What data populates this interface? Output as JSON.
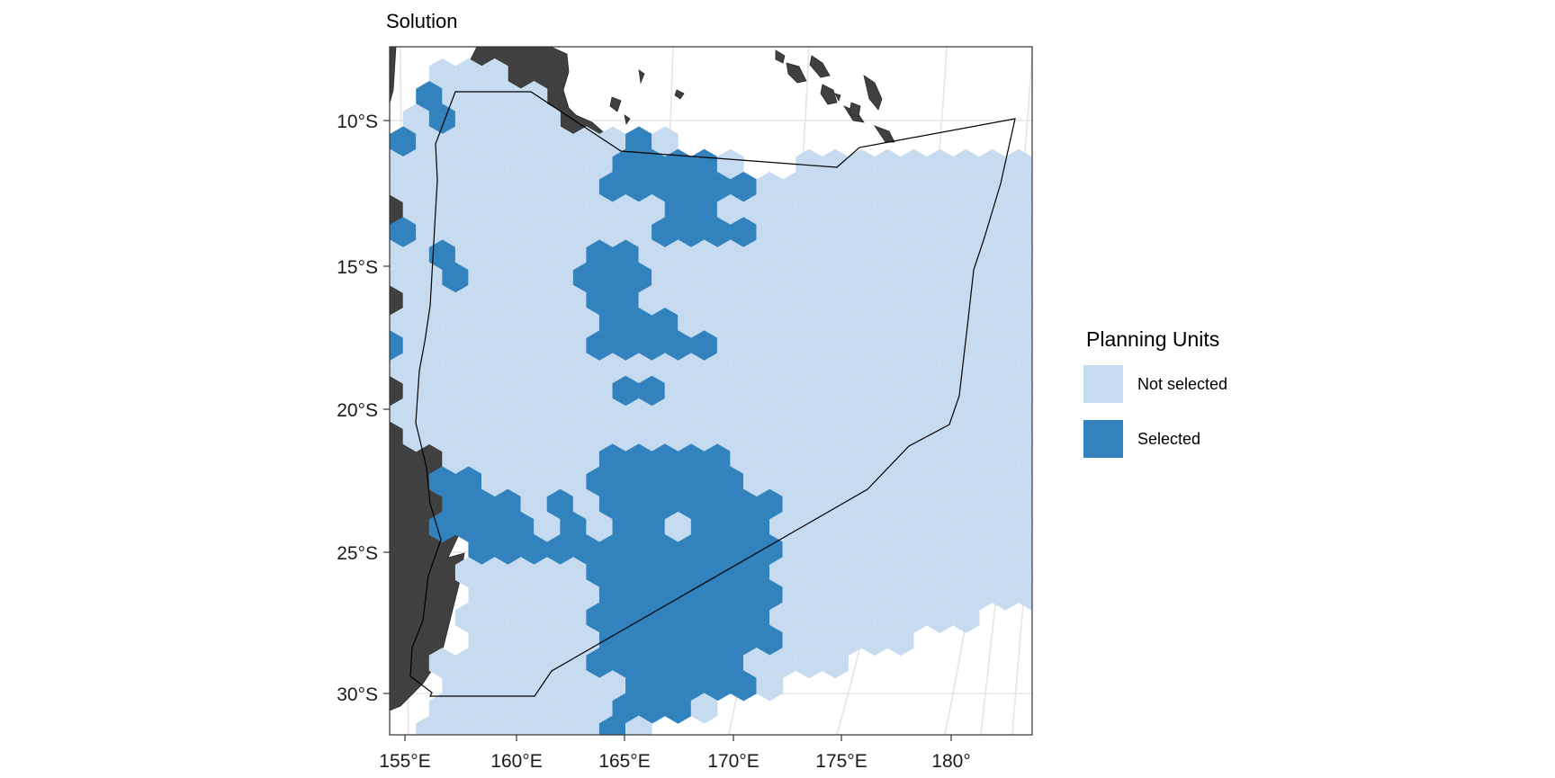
{
  "title": "Solution",
  "chart_data": {
    "type": "map",
    "title": "Solution",
    "projection": "equal-area, curved graticule",
    "grid": "on",
    "xlim": [
      154.5,
      184
    ],
    "ylim": [
      -31.5,
      -7.5
    ],
    "x_ticks": [
      {
        "value": 155,
        "label": "155°E"
      },
      {
        "value": 160,
        "label": "160°E"
      },
      {
        "value": 165,
        "label": "165°E"
      },
      {
        "value": 170,
        "label": "170°E"
      },
      {
        "value": 175,
        "label": "175°E"
      },
      {
        "value": 180,
        "label": "180°"
      }
    ],
    "y_ticks": [
      {
        "value": -10,
        "label": "10°S"
      },
      {
        "value": -15,
        "label": "15°S"
      },
      {
        "value": -20,
        "label": "20°S"
      },
      {
        "value": -25,
        "label": "25°S"
      },
      {
        "value": -30,
        "label": "30°S"
      }
    ],
    "legend": {
      "title": "Planning Units",
      "placement": "right",
      "entries": [
        {
          "label": "Not selected",
          "color": "#c6dbef"
        },
        {
          "label": "Selected",
          "color": "#3182bd"
        }
      ]
    },
    "colors": {
      "not_selected": "#c6dbef",
      "selected": "#3182bd",
      "land": "#404040",
      "boundary": "#000000",
      "grid": "#e5e5e5",
      "panel_border": "#333333"
    }
  }
}
